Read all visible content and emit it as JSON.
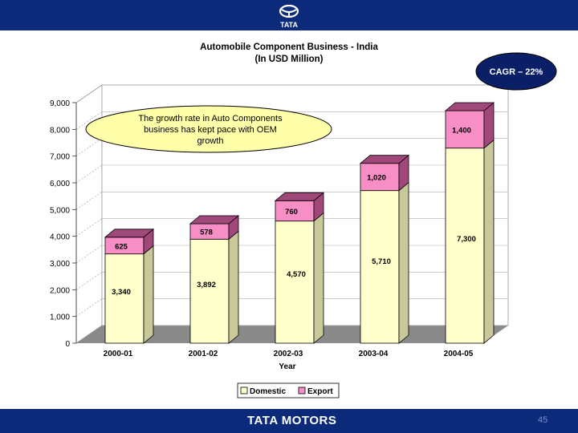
{
  "brand": {
    "top_logo_text": "TATA",
    "footer_brand": "TATA MOTORS",
    "page_number": "45"
  },
  "chart_data": {
    "type": "bar",
    "stacked": true,
    "title": "Automobile Component Business - India",
    "subtitle": "(In USD Million)",
    "xlabel": "Year",
    "ylabel": "",
    "categories": [
      "2000-01",
      "2001-02",
      "2002-03",
      "2003-04",
      "2004-05"
    ],
    "series": [
      {
        "name": "Domestic",
        "values": [
          3340,
          3892,
          4570,
          5710,
          7300
        ],
        "labels": [
          "3,340",
          "3,892",
          "4,570",
          "5,710",
          "7,300"
        ],
        "color": "#ffffcc"
      },
      {
        "name": "Export",
        "values": [
          625,
          578,
          760,
          1020,
          1400
        ],
        "labels": [
          "625",
          "578",
          "760",
          "1,020",
          "1,400"
        ],
        "color": "#f78fc6"
      }
    ],
    "yticks": [
      "0",
      "1,000",
      "2,000",
      "3,000",
      "4,000",
      "5,000",
      "6,000",
      "7,000",
      "8,000",
      "9,000"
    ],
    "ylim": [
      0,
      9000
    ],
    "grid": true,
    "legend": "bottom",
    "annotations": {
      "cagr": "CAGR – 22%",
      "callout": [
        "The growth rate in Auto Components",
        "business has kept pace with OEM",
        "growth"
      ]
    }
  }
}
